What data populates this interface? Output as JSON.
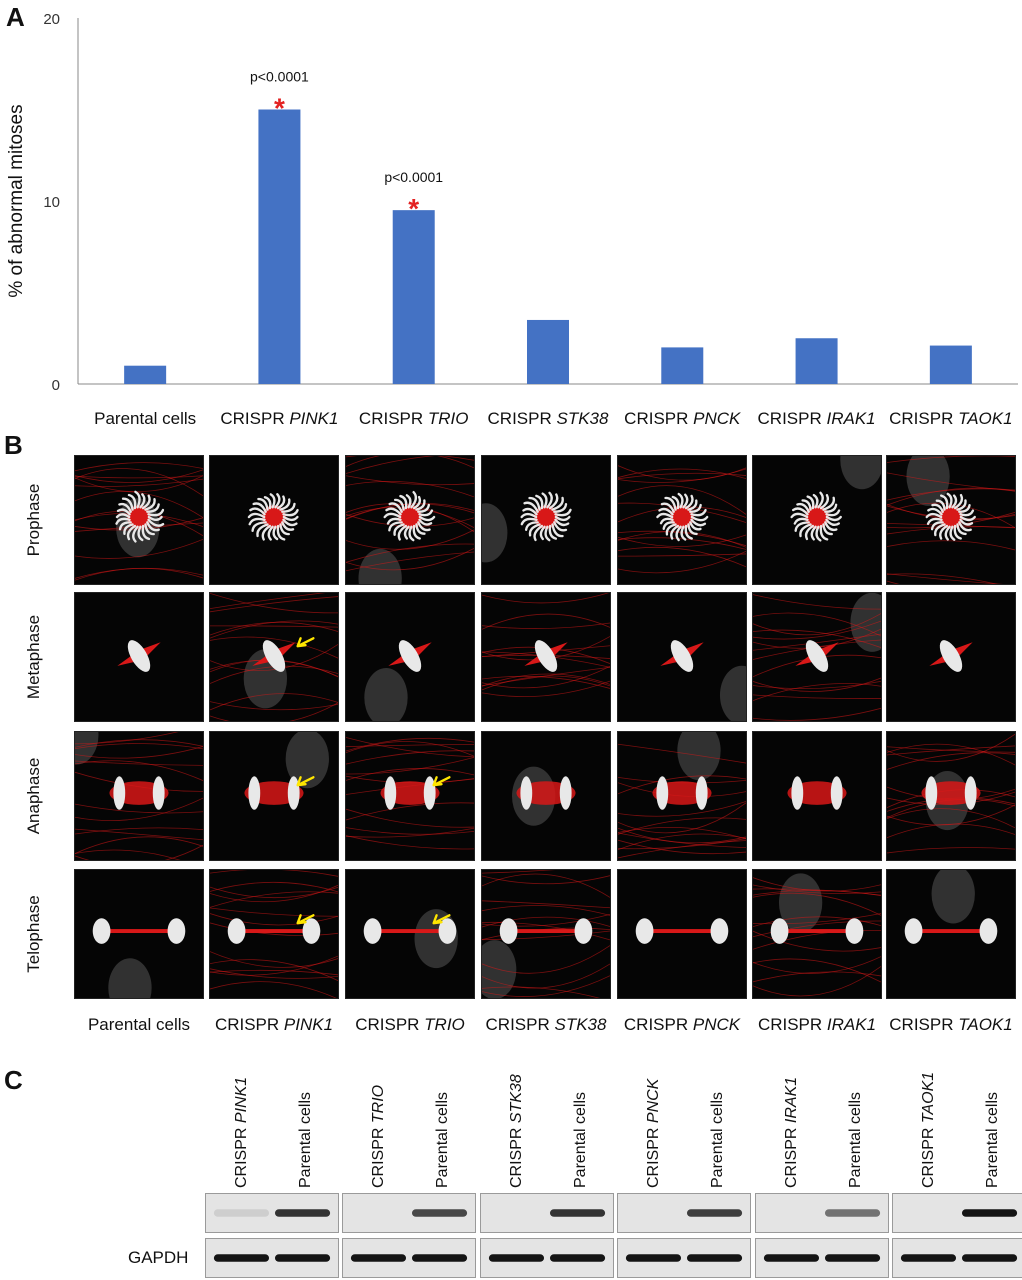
{
  "panels": {
    "a": "A",
    "b": "B",
    "c": "C"
  },
  "chart_data": {
    "type": "bar",
    "ylabel": "% of abnormal mitoses",
    "ylim": [
      0,
      20
    ],
    "yticks": [
      0,
      10,
      20
    ],
    "categories": [
      {
        "prefix": "Parental cells",
        "gene": ""
      },
      {
        "prefix": "CRISPR ",
        "gene": "PINK1"
      },
      {
        "prefix": "CRISPR ",
        "gene": "TRIO"
      },
      {
        "prefix": "CRISPR ",
        "gene": "STK38"
      },
      {
        "prefix": "CRISPR ",
        "gene": "PNCK"
      },
      {
        "prefix": "CRISPR ",
        "gene": "IRAK1"
      },
      {
        "prefix": "CRISPR ",
        "gene": "TAOK1"
      }
    ],
    "values": [
      1.0,
      15.0,
      9.5,
      3.5,
      2.0,
      2.5,
      2.1
    ],
    "annotations": [
      {
        "index": 1,
        "text": "p<0.0001",
        "marker": "*"
      },
      {
        "index": 2,
        "text": "p<0.0001",
        "marker": "*"
      }
    ],
    "bar_color": "#4472C4",
    "marker_color": "#E32222"
  },
  "micrographs": {
    "rows": [
      "Prophase",
      "Metaphase",
      "Anaphase",
      "Telophase"
    ],
    "columns": [
      {
        "prefix": "Parental cells",
        "gene": ""
      },
      {
        "prefix": "CRISPR ",
        "gene": "PINK1"
      },
      {
        "prefix": "CRISPR ",
        "gene": "TRIO"
      },
      {
        "prefix": "CRISPR ",
        "gene": "STK38"
      },
      {
        "prefix": "CRISPR ",
        "gene": "PNCK"
      },
      {
        "prefix": "CRISPR ",
        "gene": "IRAK1"
      },
      {
        "prefix": "CRISPR ",
        "gene": "TAOK1"
      }
    ],
    "arrows": [
      "Metaphase|CRISPR PINK1",
      "Anaphase|CRISPR PINK1",
      "Anaphase|CRISPR TRIO",
      "Telophase|CRISPR PINK1",
      "Telophase|CRISPR TRIO"
    ],
    "stain_colors": {
      "tubulin": "#d81818",
      "dna": "#e8e8e8",
      "arrow": "#ffe600"
    }
  },
  "western": {
    "pairs": [
      {
        "lane1": {
          "prefix": "CRISPR ",
          "gene": "PINK1"
        },
        "lane2": "Parental cells",
        "target_band": [
          0.1,
          0.85
        ]
      },
      {
        "lane1": {
          "prefix": "CRISPR ",
          "gene": "TRIO"
        },
        "lane2": "Parental cells",
        "target_band": [
          0.05,
          0.75
        ]
      },
      {
        "lane1": {
          "prefix": "CRISPR ",
          "gene": "STK38"
        },
        "lane2": "Parental cells",
        "target_band": [
          0.05,
          0.85
        ]
      },
      {
        "lane1": {
          "prefix": "CRISPR ",
          "gene": "PNCK"
        },
        "lane2": "Parental cells",
        "target_band": [
          0.05,
          0.8
        ]
      },
      {
        "lane1": {
          "prefix": "CRISPR ",
          "gene": "IRAK1"
        },
        "lane2": "Parental cells",
        "target_band": [
          0.05,
          0.55
        ]
      },
      {
        "lane1": {
          "prefix": "CRISPR ",
          "gene": "TAOK1"
        },
        "lane2": "Parental cells",
        "target_band": [
          0.05,
          1.0
        ]
      }
    ],
    "loading_label": "GAPDH"
  }
}
